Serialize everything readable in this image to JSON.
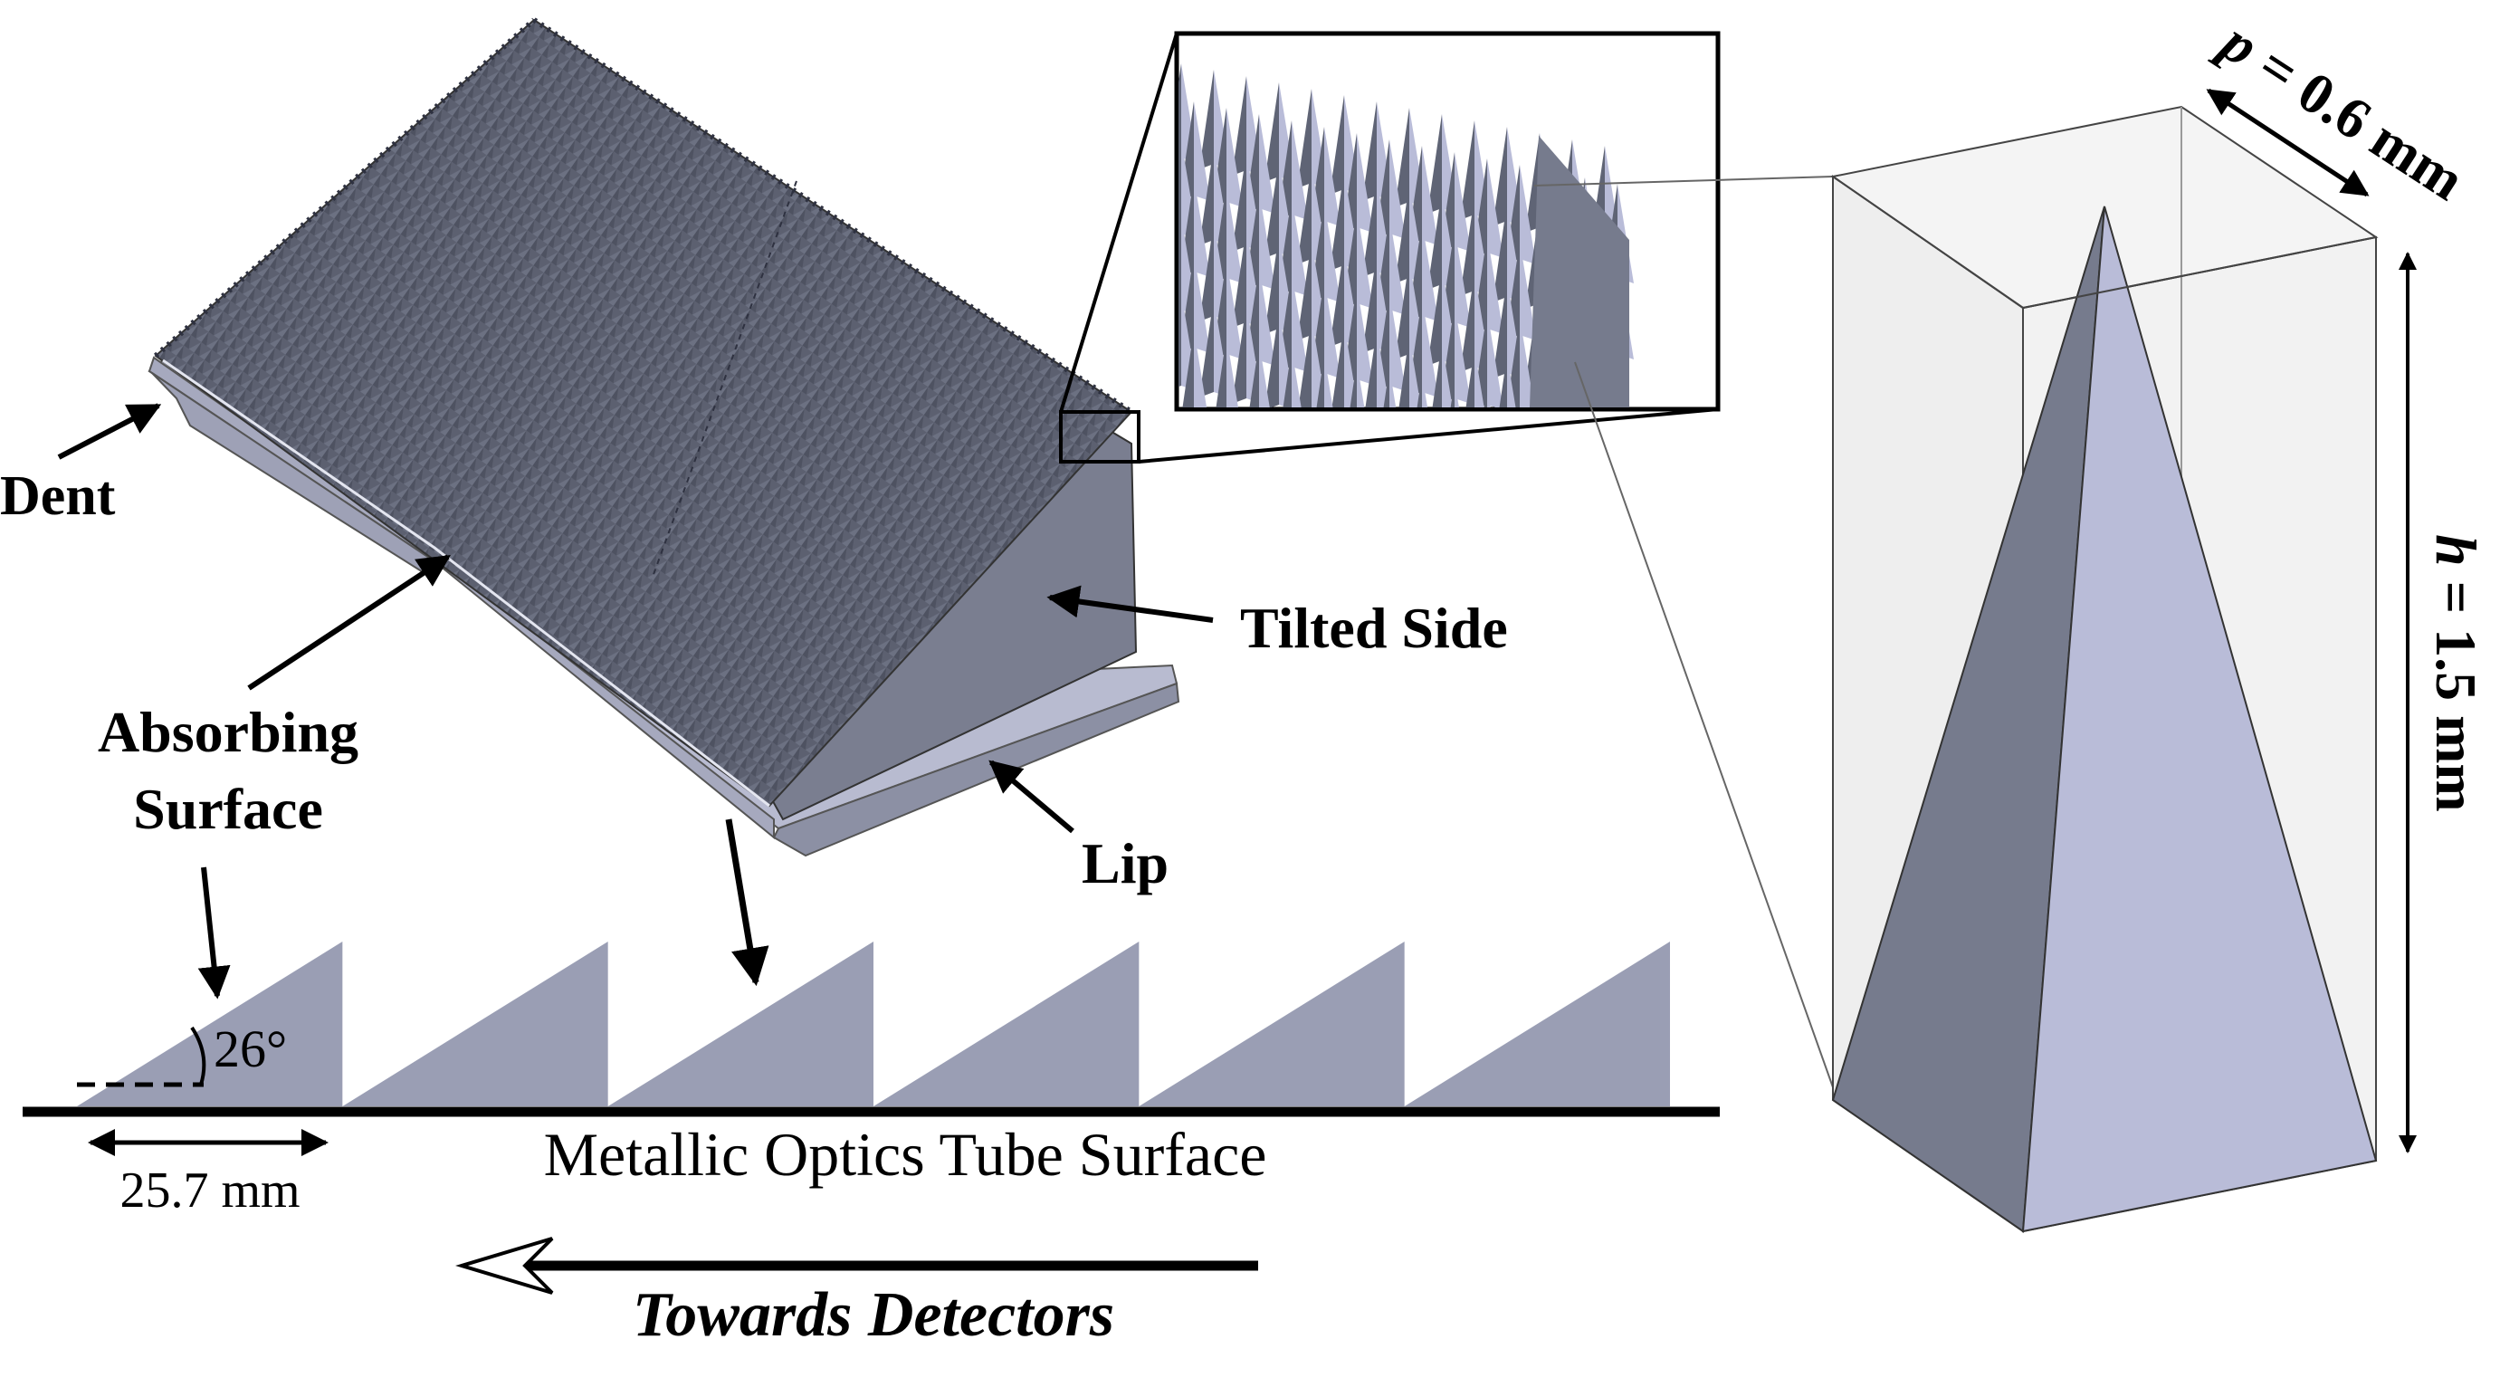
{
  "labels": {
    "dent": "Dent",
    "absorbing_surface_line1": "Absorbing",
    "absorbing_surface_line2": "Surface",
    "tilted_side": "Tilted Side",
    "lip": "Lip",
    "angle": "26°",
    "pitch_dimension": "25.7 mm",
    "tube_surface": "Metallic Optics Tube Surface",
    "direction": "Towards Detectors",
    "p_var": "p",
    "p_value": " = 0.6 mm",
    "h_var": "h",
    "h_value": " = 1.5 mm"
  },
  "colors": {
    "spike_dark": "#5f6475",
    "spike_mid": "#767b8d",
    "spike_light": "#b9bcd8",
    "sawtooth": "#9a9eb4",
    "lip_top": "#b8bbd0",
    "lip_side": "#8c90a4",
    "tilted_side": "#7a7e90",
    "box_face": "#ececec",
    "outline": "#000000"
  },
  "sawtooth": {
    "teeth": 6
  },
  "inset_spikes": {
    "columns": 14,
    "rows": 8
  }
}
